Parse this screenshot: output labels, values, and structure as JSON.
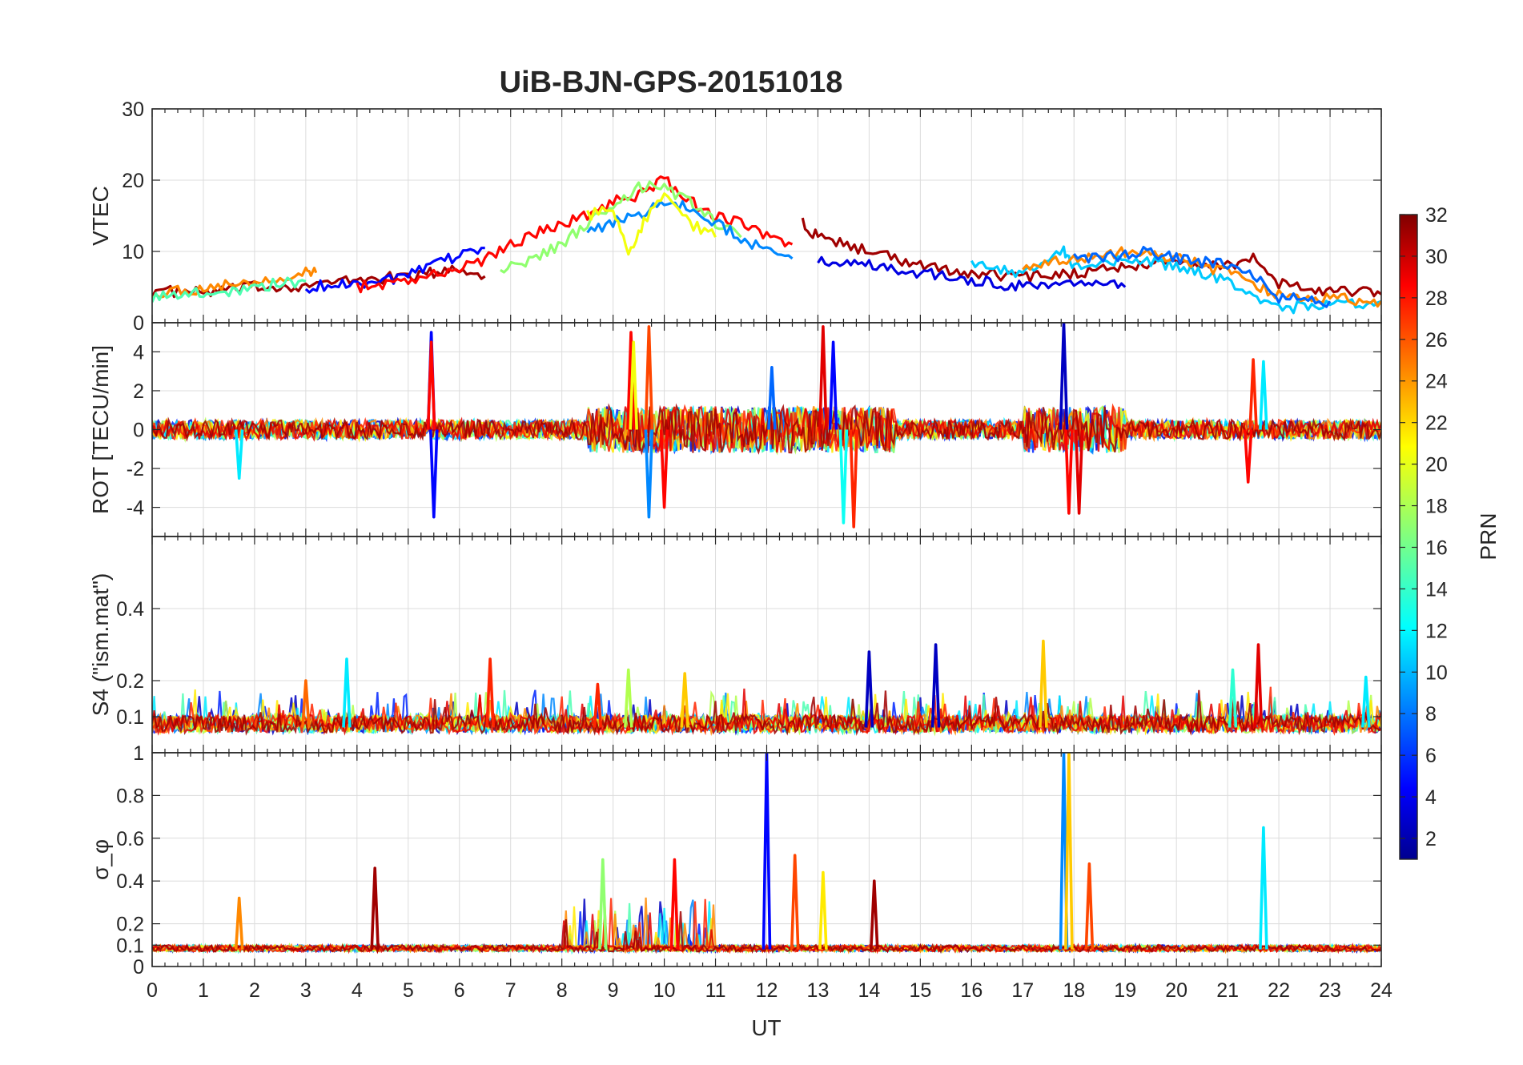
{
  "chart_data": {
    "type": "line",
    "title": "UiB-BJN-GPS-20151018",
    "xlabel": "UT",
    "xlim": [
      0,
      24
    ],
    "xticks": [
      "0",
      "1",
      "2",
      "3",
      "4",
      "5",
      "6",
      "7",
      "8",
      "9",
      "10",
      "11",
      "12",
      "13",
      "14",
      "15",
      "16",
      "17",
      "18",
      "19",
      "20",
      "21",
      "22",
      "23",
      "24"
    ],
    "colorbar": {
      "label": "PRN",
      "range": [
        1,
        32
      ],
      "ticks": [
        "2",
        "4",
        "6",
        "8",
        "10",
        "12",
        "14",
        "16",
        "18",
        "20",
        "22",
        "24",
        "26",
        "28",
        "30",
        "32"
      ],
      "colormap": "jet"
    },
    "panels": [
      {
        "name": "vtec",
        "ylabel": "VTEC",
        "ylim": [
          0,
          30
        ],
        "yticks": [
          "0",
          "10",
          "20",
          "30"
        ],
        "ytick_values": [
          0,
          10,
          20,
          30
        ],
        "series": [
          {
            "prn": 31,
            "x": [
              0,
              1,
              2,
              3,
              4,
              5,
              6,
              6.5
            ],
            "y": [
              4.5,
              4.2,
              5,
              5.2,
              6,
              6.5,
              7.5,
              6.5
            ]
          },
          {
            "prn": 5,
            "x": [
              3,
              4,
              5,
              5.5,
              6,
              6.5
            ],
            "y": [
              5,
              5.5,
              6.5,
              8,
              9.5,
              10.5
            ]
          },
          {
            "prn": 24,
            "x": [
              0,
              0.5,
              1,
              1.5,
              2,
              2.5,
              3,
              3.2
            ],
            "y": [
              4,
              4.5,
              4.8,
              5.5,
              5.8,
              6.5,
              7,
              7
            ]
          },
          {
            "prn": 15,
            "x": [
              0,
              0.5,
              1,
              1.5,
              2,
              2.5,
              3
            ],
            "y": [
              3.5,
              3.8,
              4.2,
              4.5,
              5,
              5.5,
              5.8
            ]
          },
          {
            "prn": 28,
            "x": [
              4,
              5,
              6,
              6.5,
              7,
              7.5,
              8,
              8.5,
              9,
              9.5,
              10,
              10.5,
              11,
              11.5,
              12,
              12.5
            ],
            "y": [
              5,
              6,
              7.5,
              9,
              11,
              12.5,
              14,
              15,
              17,
              18,
              20,
              17,
              15,
              14,
              12,
              11
            ]
          },
          {
            "prn": 17,
            "x": [
              6.8,
              7.5,
              8,
              8.5,
              9,
              9.5,
              10,
              10.5,
              11,
              11.5
            ],
            "y": [
              7.5,
              9,
              11,
              14,
              16,
              19,
              19,
              17,
              14,
              12
            ]
          },
          {
            "prn": 9,
            "x": [
              8.5,
              9,
              9.5,
              10,
              10.5,
              11,
              11.5,
              12,
              12.5
            ],
            "y": [
              13,
              14,
              15,
              17,
              16,
              14,
              12,
              10,
              9
            ]
          },
          {
            "prn": 20,
            "x": [
              8.5,
              9,
              9.3,
              9.6,
              10,
              10.5,
              11
            ],
            "y": [
              15,
              16,
              10,
              14,
              18,
              14,
              12
            ]
          },
          {
            "prn": 31,
            "x": [
              12.7,
              13,
              14,
              15,
              16,
              17,
              18,
              19,
              20,
              21,
              21.5,
              22,
              23,
              24
            ],
            "y": [
              14,
              12,
              10,
              8,
              7,
              6.5,
              7,
              8,
              8.5,
              8,
              9,
              5.5,
              4.5,
              4
            ]
          },
          {
            "prn": 4,
            "x": [
              13,
              14,
              15,
              16,
              17,
              18,
              19
            ],
            "y": [
              9,
              8,
              7,
              6,
              5,
              6,
              5
            ]
          },
          {
            "prn": 11,
            "x": [
              16,
              17,
              17.8,
              18,
              19,
              20,
              21,
              22,
              23,
              24
            ],
            "y": [
              8,
              7,
              10,
              8,
              9,
              8,
              6,
              2,
              2.5,
              3
            ]
          },
          {
            "prn": 24,
            "x": [
              17,
              18,
              19,
              20,
              21,
              22,
              23,
              24
            ],
            "y": [
              8,
              9,
              10,
              9,
              7,
              4,
              3.5,
              3
            ]
          },
          {
            "prn": 8,
            "x": [
              18,
              19,
              19.5,
              20,
              21,
              21.5,
              22,
              23
            ],
            "y": [
              9,
              9.5,
              10,
              9,
              8,
              7,
              3.5,
              3
            ]
          }
        ]
      },
      {
        "name": "rot",
        "ylabel": "ROT [TECU/min]",
        "ylim": [
          -5.5,
          5.5
        ],
        "yticks": [
          "-4",
          "-2",
          "0",
          "2",
          "4"
        ],
        "ytick_values": [
          -4,
          -2,
          0,
          2,
          4
        ],
        "spikes": [
          {
            "prn": 5,
            "x": 5.45,
            "y": 5
          },
          {
            "prn": 5,
            "x": 5.5,
            "y": -4.5
          },
          {
            "prn": 28,
            "x": 5.45,
            "y": 4.5
          },
          {
            "prn": 28,
            "x": 9.35,
            "y": 5
          },
          {
            "prn": 26,
            "x": 9.7,
            "y": 5.3
          },
          {
            "prn": 9,
            "x": 9.7,
            "y": -4.5
          },
          {
            "prn": 28,
            "x": 10,
            "y": -4
          },
          {
            "prn": 20,
            "x": 9.4,
            "y": 4.5
          },
          {
            "prn": 5,
            "x": 13.3,
            "y": 4.5
          },
          {
            "prn": 29,
            "x": 13.1,
            "y": 5.3
          },
          {
            "prn": 13,
            "x": 13.5,
            "y": -4.8
          },
          {
            "prn": 27,
            "x": 13.7,
            "y": -5
          },
          {
            "prn": 3,
            "x": 17.8,
            "y": 5.5
          },
          {
            "prn": 28,
            "x": 17.9,
            "y": -4.3
          },
          {
            "prn": 29,
            "x": 18.1,
            "y": -4.3
          },
          {
            "prn": 27,
            "x": 21.5,
            "y": 3.6
          },
          {
            "prn": 28,
            "x": 21.4,
            "y": -2.7
          },
          {
            "prn": 12,
            "x": 21.7,
            "y": 3.5
          },
          {
            "prn": 12,
            "x": 1.7,
            "y": -2.5
          },
          {
            "prn": 8,
            "x": 12.1,
            "y": 3.2
          }
        ]
      },
      {
        "name": "s4",
        "ylabel": "S4 (\"ism.mat\")",
        "ylim": [
          0,
          0.6
        ],
        "yticks": [
          "0.1",
          "0.2",
          "0.4"
        ],
        "ytick_values": [
          0.1,
          0.2,
          0.4
        ],
        "spikes": [
          {
            "prn": 12,
            "x": 3.8,
            "y": 0.26
          },
          {
            "prn": 25,
            "x": 3,
            "y": 0.2
          },
          {
            "prn": 27,
            "x": 6.6,
            "y": 0.26
          },
          {
            "prn": 27,
            "x": 8.7,
            "y": 0.19
          },
          {
            "prn": 18,
            "x": 9.3,
            "y": 0.23
          },
          {
            "prn": 22,
            "x": 10.4,
            "y": 0.22
          },
          {
            "prn": 3,
            "x": 14,
            "y": 0.28
          },
          {
            "prn": 3,
            "x": 15.3,
            "y": 0.3
          },
          {
            "prn": 22,
            "x": 17.4,
            "y": 0.31
          },
          {
            "prn": 14,
            "x": 21.1,
            "y": 0.23
          },
          {
            "prn": 29,
            "x": 21.6,
            "y": 0.3
          },
          {
            "prn": 12,
            "x": 23.7,
            "y": 0.21
          }
        ]
      },
      {
        "name": "sigma_phi",
        "ylabel": "σ_φ",
        "ylim": [
          0,
          1
        ],
        "yticks": [
          "0",
          "0.1",
          "0.2",
          "0.4",
          "0.6",
          "0.8",
          "1"
        ],
        "ytick_values": [
          0,
          0.1,
          0.2,
          0.4,
          0.6,
          0.8,
          1
        ],
        "spikes": [
          {
            "prn": 24,
            "x": 1.7,
            "y": 0.32
          },
          {
            "prn": 31,
            "x": 4.35,
            "y": 0.46
          },
          {
            "prn": 17,
            "x": 8.8,
            "y": 0.5
          },
          {
            "prn": 28,
            "x": 10.2,
            "y": 0.5
          },
          {
            "prn": 5,
            "x": 12,
            "y": 1
          },
          {
            "prn": 26,
            "x": 12.55,
            "y": 0.52
          },
          {
            "prn": 21,
            "x": 13.1,
            "y": 0.44
          },
          {
            "prn": 31,
            "x": 14.1,
            "y": 0.4
          },
          {
            "prn": 9,
            "x": 17.8,
            "y": 1
          },
          {
            "prn": 22,
            "x": 17.9,
            "y": 1
          },
          {
            "prn": 26,
            "x": 18.3,
            "y": 0.48
          },
          {
            "prn": 12,
            "x": 21.7,
            "y": 0.65
          }
        ]
      }
    ]
  }
}
